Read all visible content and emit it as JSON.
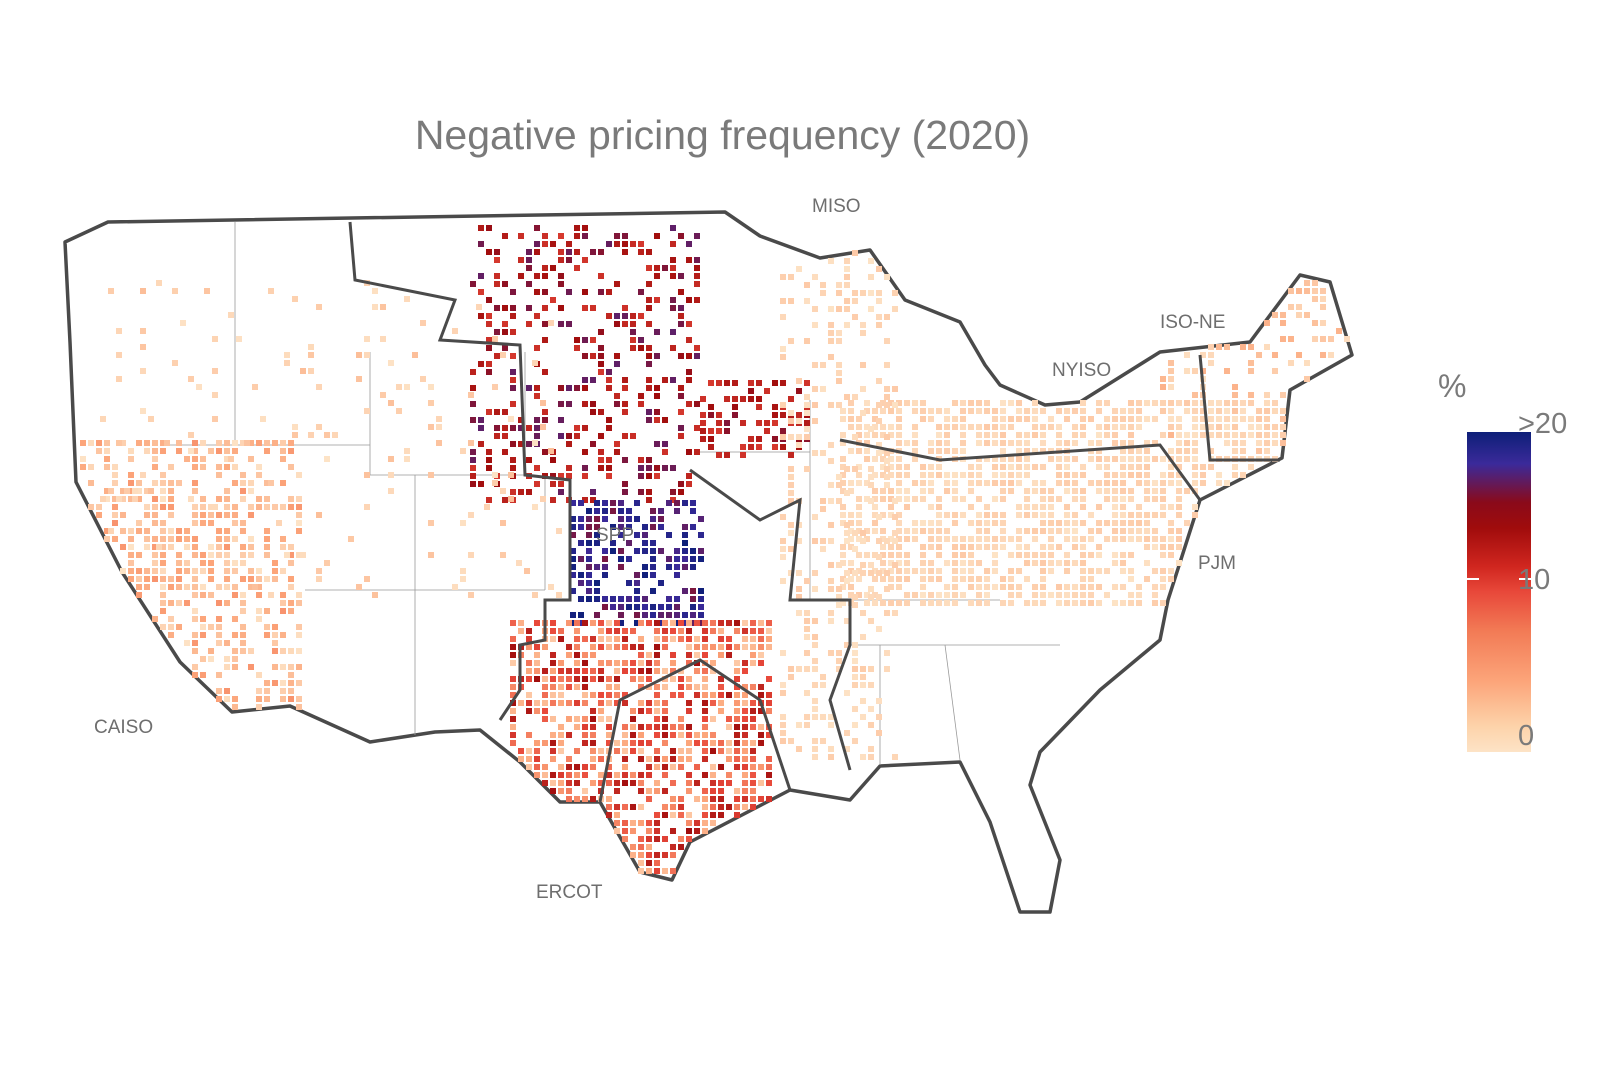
{
  "title": "Negative pricing frequency (2020)",
  "regions": [
    {
      "name": "MISO"
    },
    {
      "name": "ISO-NE"
    },
    {
      "name": "NYISO"
    },
    {
      "name": "SPP"
    },
    {
      "name": "PJM"
    },
    {
      "name": "CAISO"
    },
    {
      "name": "ERCOT"
    }
  ],
  "legend": {
    "title": "%",
    "ticks": [
      ">20",
      "10",
      "0"
    ],
    "range": [
      0,
      20
    ],
    "colors": [
      "#fde3c6",
      "#fca57a",
      "#e8483a",
      "#a00c0c",
      "#3b2a9a",
      "#0d1f78"
    ]
  },
  "chart_data": {
    "type": "heatmap",
    "title": "Negative pricing frequency (2020)",
    "legend_title": "%",
    "scale_range": [
      0,
      20
    ],
    "legend_position": "right"
  }
}
